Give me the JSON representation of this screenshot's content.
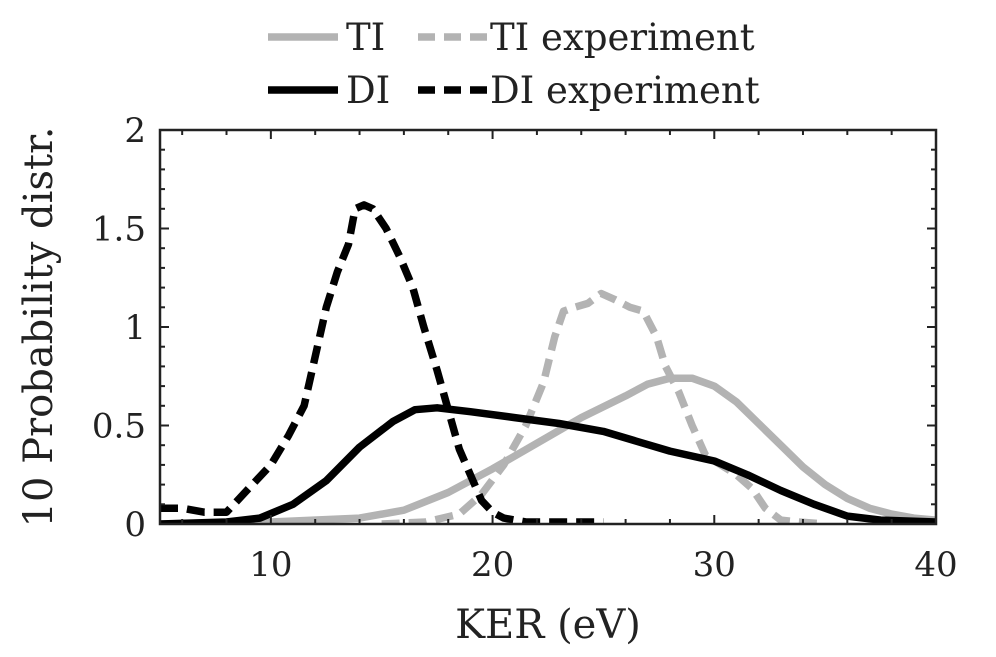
{
  "chart_data": {
    "type": "line",
    "title": "",
    "xlabel": "KER (eV)",
    "ylabel": "10 Probability distr.",
    "xlim": [
      5,
      40
    ],
    "ylim": [
      0,
      2
    ],
    "xticks": [
      {
        "value": 10,
        "label": "10"
      },
      {
        "value": 20,
        "label": "20"
      },
      {
        "value": 30,
        "label": "30"
      },
      {
        "value": 40,
        "label": "40"
      }
    ],
    "yticks": [
      {
        "value": 0,
        "label": "0"
      },
      {
        "value": 0.5,
        "label": "0.5"
      },
      {
        "value": 1,
        "label": "1"
      },
      {
        "value": 1.5,
        "label": "1.5"
      },
      {
        "value": 2,
        "label": "2"
      }
    ],
    "grid": false,
    "legend_position": "top",
    "series": [
      {
        "name": "TI",
        "color": "#b3b3b3",
        "style": "solid",
        "points": [
          [
            5,
            0
          ],
          [
            10,
            0.01
          ],
          [
            14,
            0.03
          ],
          [
            16,
            0.07
          ],
          [
            18,
            0.16
          ],
          [
            20,
            0.28
          ],
          [
            22,
            0.41
          ],
          [
            24,
            0.54
          ],
          [
            26,
            0.65
          ],
          [
            27,
            0.71
          ],
          [
            28,
            0.74
          ],
          [
            29,
            0.74
          ],
          [
            30,
            0.7
          ],
          [
            31,
            0.62
          ],
          [
            32,
            0.51
          ],
          [
            33,
            0.4
          ],
          [
            34,
            0.29
          ],
          [
            35,
            0.2
          ],
          [
            36,
            0.13
          ],
          [
            37,
            0.08
          ],
          [
            38,
            0.05
          ],
          [
            39,
            0.03
          ],
          [
            40,
            0.02
          ]
        ]
      },
      {
        "name": "TI experiment",
        "color": "#b3b3b3",
        "style": "dashed",
        "points": [
          [
            15,
            0
          ],
          [
            17,
            0.01
          ],
          [
            18.5,
            0.05
          ],
          [
            19.5,
            0.15
          ],
          [
            20.5,
            0.3
          ],
          [
            21.5,
            0.5
          ],
          [
            22.3,
            0.72
          ],
          [
            22.8,
            0.95
          ],
          [
            23.2,
            1.08
          ],
          [
            23.7,
            1.1
          ],
          [
            24.3,
            1.12
          ],
          [
            24.9,
            1.17
          ],
          [
            25.5,
            1.14
          ],
          [
            26.2,
            1.1
          ],
          [
            26.8,
            1.08
          ],
          [
            27.4,
            0.95
          ],
          [
            27.8,
            0.8
          ],
          [
            28.4,
            0.67
          ],
          [
            29,
            0.5
          ],
          [
            29.6,
            0.35
          ],
          [
            30.3,
            0.3
          ],
          [
            31,
            0.25
          ],
          [
            31.7,
            0.18
          ],
          [
            32.3,
            0.08
          ],
          [
            33,
            0.02
          ],
          [
            33.8,
            0.01
          ],
          [
            35,
            0
          ]
        ]
      },
      {
        "name": "DI",
        "color": "#000000",
        "style": "solid",
        "points": [
          [
            5,
            0
          ],
          [
            8,
            0.01
          ],
          [
            9.5,
            0.03
          ],
          [
            11,
            0.1
          ],
          [
            12.5,
            0.22
          ],
          [
            14,
            0.39
          ],
          [
            15.5,
            0.52
          ],
          [
            16.5,
            0.58
          ],
          [
            17.5,
            0.59
          ],
          [
            19,
            0.57
          ],
          [
            21,
            0.54
          ],
          [
            23,
            0.51
          ],
          [
            25,
            0.47
          ],
          [
            26.5,
            0.42
          ],
          [
            28,
            0.37
          ],
          [
            30,
            0.32
          ],
          [
            31.5,
            0.25
          ],
          [
            33,
            0.17
          ],
          [
            34.5,
            0.1
          ],
          [
            36,
            0.04
          ],
          [
            37.5,
            0.02
          ],
          [
            40,
            0.01
          ]
        ]
      },
      {
        "name": "DI experiment",
        "color": "#000000",
        "style": "dashed",
        "points": [
          [
            5,
            0.08
          ],
          [
            6,
            0.08
          ],
          [
            7,
            0.06
          ],
          [
            8,
            0.06
          ],
          [
            9,
            0.18
          ],
          [
            10,
            0.3
          ],
          [
            10.8,
            0.45
          ],
          [
            11.5,
            0.6
          ],
          [
            12,
            0.85
          ],
          [
            12.5,
            1.1
          ],
          [
            13,
            1.28
          ],
          [
            13.5,
            1.42
          ],
          [
            13.8,
            1.6
          ],
          [
            14.2,
            1.62
          ],
          [
            14.6,
            1.6
          ],
          [
            15.2,
            1.5
          ],
          [
            15.8,
            1.36
          ],
          [
            16.4,
            1.2
          ],
          [
            16.9,
            1
          ],
          [
            17.5,
            0.78
          ],
          [
            18,
            0.58
          ],
          [
            18.5,
            0.38
          ],
          [
            19,
            0.25
          ],
          [
            19.5,
            0.12
          ],
          [
            20,
            0.06
          ],
          [
            20.5,
            0.03
          ],
          [
            21.5,
            0.01
          ],
          [
            25,
            0.01
          ]
        ]
      }
    ]
  }
}
